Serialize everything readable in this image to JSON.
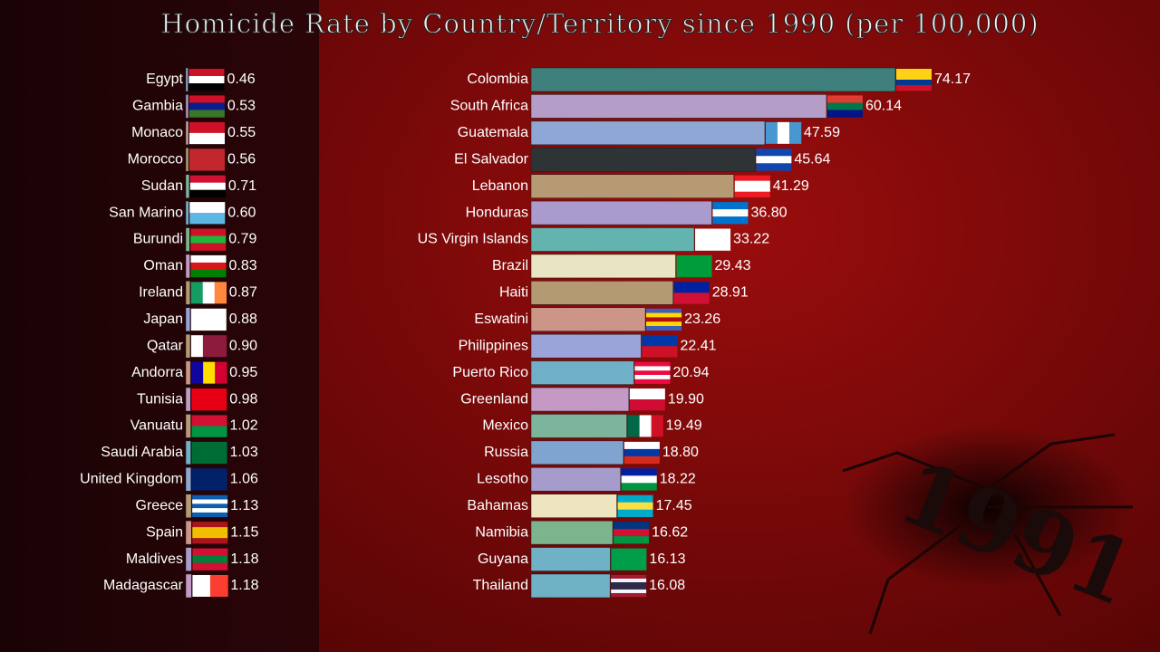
{
  "header": {
    "title": "Homicide Rate by Country/Territory since 1990 (per 100,000)",
    "year": "1991"
  },
  "chart_data": [
    {
      "type": "bar",
      "orientation": "horizontal",
      "categories": [
        "Egypt",
        "Gambia",
        "Monaco",
        "Morocco",
        "Sudan",
        "San Marino",
        "Burundi",
        "Oman",
        "Ireland",
        "Japan",
        "Qatar",
        "Andorra",
        "Tunisia",
        "Vanuatu",
        "Saudi Arabia",
        "United Kingdom",
        "Greece",
        "Spain",
        "Maldives",
        "Madagascar"
      ],
      "values": [
        0.46,
        0.53,
        0.55,
        0.56,
        0.71,
        0.6,
        0.79,
        0.83,
        0.87,
        0.88,
        0.9,
        0.95,
        0.98,
        1.02,
        1.03,
        1.06,
        1.13,
        1.15,
        1.18,
        1.18
      ],
      "value_labels": [
        "0.46",
        "0.53",
        "0.55",
        "0.56",
        "0.71",
        "0.60",
        "0.79",
        "0.83",
        "0.87",
        "0.88",
        "0.90",
        "0.95",
        "0.98",
        "1.02",
        "1.03",
        "1.06",
        "1.13",
        "1.15",
        "1.18",
        "1.18"
      ],
      "colors": [
        "#8fa7d4",
        "#b49ec8",
        "#c8a0a0",
        "#b59a74",
        "#7db59c",
        "#6fb0c8",
        "#7cb48e",
        "#c49ac4",
        "#b59a74",
        "#9aa4d8",
        "#b59a74",
        "#cd9588",
        "#c49ac4",
        "#b59a74",
        "#6fb2c6",
        "#8fa7d4",
        "#b59a74",
        "#cd9588",
        "#a99ccc",
        "#c49ac4"
      ]
    },
    {
      "type": "bar",
      "orientation": "horizontal",
      "categories": [
        "Colombia",
        "South Africa",
        "Guatemala",
        "El Salvador",
        "Lebanon",
        "Honduras",
        "US Virgin Islands",
        "Brazil",
        "Haiti",
        "Eswatini",
        "Philippines",
        "Puerto Rico",
        "Greenland",
        "Mexico",
        "Russia",
        "Lesotho",
        "Bahamas",
        "Namibia",
        "Guyana",
        "Thailand"
      ],
      "values": [
        74.17,
        60.14,
        47.59,
        45.64,
        41.29,
        36.8,
        33.22,
        29.43,
        28.91,
        23.26,
        22.41,
        20.94,
        19.9,
        19.49,
        18.8,
        18.22,
        17.45,
        16.62,
        16.13,
        16.08
      ],
      "value_labels": [
        "74.17",
        "60.14",
        "47.59",
        "45.64",
        "41.29",
        "36.80",
        "33.22",
        "29.43",
        "28.91",
        "23.26",
        "22.41",
        "20.94",
        "19.90",
        "19.49",
        "18.80",
        "18.22",
        "17.45",
        "16.62",
        "16.13",
        "16.08"
      ],
      "colors": [
        "#3f7f7c",
        "#b49ec8",
        "#8fa7d4",
        "#2e3436",
        "#b59a74",
        "#a99ccc",
        "#63b4ae",
        "#e8e4c4",
        "#b39a72",
        "#cd9588",
        "#9aa4d8",
        "#6fb0c8",
        "#c49ac4",
        "#7db59c",
        "#7fa4d0",
        "#a69ccc",
        "#ede4c0",
        "#7cb48e",
        "#6fb2c6",
        "#6fb2c6"
      ]
    }
  ]
}
